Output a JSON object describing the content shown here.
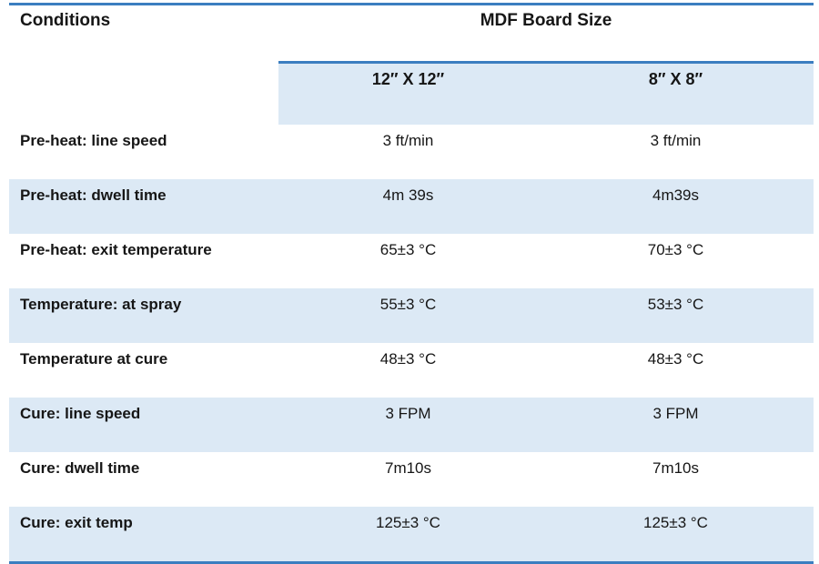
{
  "table": {
    "corner_header": "Conditions",
    "group_header": "MDF Board Size",
    "column_headers": [
      "12″ X 12″",
      "8″ X 8″"
    ],
    "rows": [
      {
        "label": "Pre-heat: line speed",
        "values": [
          "3 ft/min",
          "3 ft/min"
        ]
      },
      {
        "label": "Pre-heat: dwell time",
        "values": [
          "4m 39s",
          "4m39s"
        ]
      },
      {
        "label": "Pre-heat: exit temperature",
        "values": [
          "65±3 °C",
          "70±3 °C"
        ]
      },
      {
        "label": "Temperature: at spray",
        "values": [
          "55±3 °C",
          "53±3 °C"
        ]
      },
      {
        "label": "Temperature at cure",
        "values": [
          "48±3 °C",
          "48±3 °C"
        ]
      },
      {
        "label": "Cure: line speed",
        "values": [
          "3 FPM",
          "3 FPM"
        ]
      },
      {
        "label": "Cure: dwell time",
        "values": [
          "7m10s",
          "7m10s"
        ]
      },
      {
        "label": "Cure: exit temp",
        "values": [
          "125±3 °C",
          "125±3 °C"
        ]
      }
    ],
    "colors": {
      "border_blue": "#3B7EC0",
      "band_fill": "#DCE9F5",
      "text": "#161616"
    }
  }
}
